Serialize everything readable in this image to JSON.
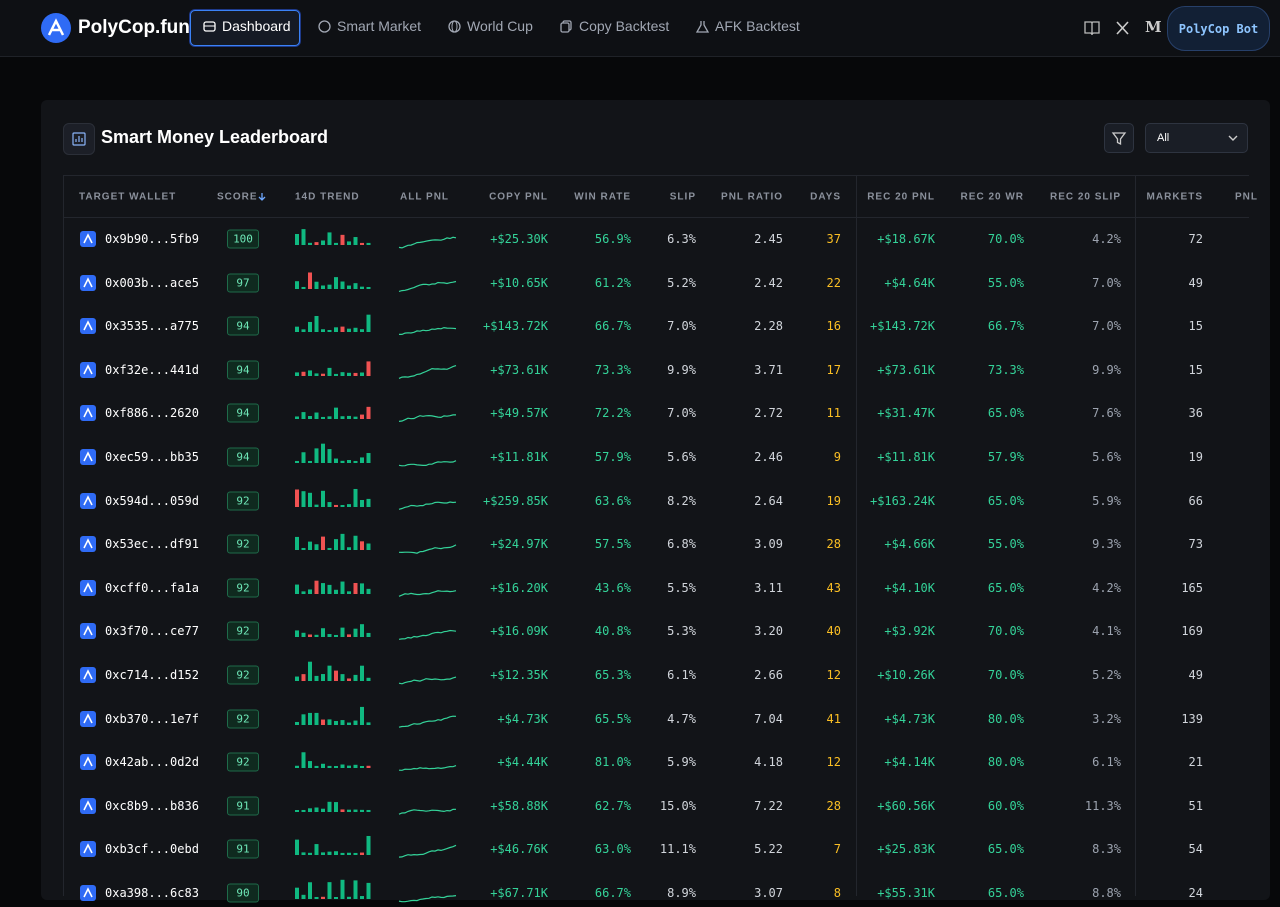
{
  "nav": {
    "brand": "PolyCop.fun",
    "items": [
      "Dashboard",
      "Smart Market",
      "World Cup",
      "Copy Backtest",
      "AFK Backtest"
    ],
    "button": "PolyCop Bot"
  },
  "panel": {
    "title": "Smart Money Leaderboard",
    "filter": "All"
  },
  "table": {
    "headers": [
      "TARGET WALLET",
      "SCORE",
      "14D TREND",
      "ALL PNL",
      "COPY PNL",
      "WIN RATE",
      "SLIP",
      "PNL RATIO",
      "DAYS",
      "REC 20 PNL",
      "REC 20 WR",
      "REC 20 SLIP",
      "MARKETS",
      "PNL"
    ],
    "rows": [
      [
        "0x9b90...5fb9",
        "100",
        "+$25.30K",
        "56.9%",
        "6.3%",
        "2.45",
        "37",
        "+$18.67K",
        "70.0%",
        "4.2%",
        "72"
      ],
      [
        "0x003b...ace5",
        "97",
        "+$10.65K",
        "61.2%",
        "5.2%",
        "2.42",
        "22",
        "+$4.64K",
        "55.0%",
        "7.0%",
        "49"
      ],
      [
        "0x3535...a775",
        "94",
        "+$143.72K",
        "66.7%",
        "7.0%",
        "2.28",
        "16",
        "+$143.72K",
        "66.7%",
        "7.0%",
        "15"
      ],
      [
        "0xf32e...441d",
        "94",
        "+$73.61K",
        "73.3%",
        "9.9%",
        "3.71",
        "17",
        "+$73.61K",
        "73.3%",
        "9.9%",
        "15"
      ],
      [
        "0xf886...2620",
        "94",
        "+$49.57K",
        "72.2%",
        "7.0%",
        "2.72",
        "11",
        "+$31.47K",
        "65.0%",
        "7.6%",
        "36"
      ],
      [
        "0xec59...bb35",
        "94",
        "+$11.81K",
        "57.9%",
        "5.6%",
        "2.46",
        "9",
        "+$11.81K",
        "57.9%",
        "5.6%",
        "19"
      ],
      [
        "0x594d...059d",
        "92",
        "+$259.85K",
        "63.6%",
        "8.2%",
        "2.64",
        "19",
        "+$163.24K",
        "65.0%",
        "5.9%",
        "66"
      ],
      [
        "0x53ec...df91",
        "92",
        "+$24.97K",
        "57.5%",
        "6.8%",
        "3.09",
        "28",
        "+$4.66K",
        "55.0%",
        "9.3%",
        "73"
      ],
      [
        "0xcff0...fa1a",
        "92",
        "+$16.20K",
        "43.6%",
        "5.5%",
        "3.11",
        "43",
        "+$4.10K",
        "65.0%",
        "4.2%",
        "165"
      ],
      [
        "0x3f70...ce77",
        "92",
        "+$16.09K",
        "40.8%",
        "5.3%",
        "3.20",
        "40",
        "+$3.92K",
        "70.0%",
        "4.1%",
        "169"
      ],
      [
        "0xc714...d152",
        "92",
        "+$12.35K",
        "65.3%",
        "6.1%",
        "2.66",
        "12",
        "+$10.26K",
        "70.0%",
        "5.2%",
        "49"
      ],
      [
        "0xb370...1e7f",
        "92",
        "+$4.73K",
        "65.5%",
        "4.7%",
        "7.04",
        "41",
        "+$4.73K",
        "80.0%",
        "3.2%",
        "139"
      ],
      [
        "0x42ab...0d2d",
        "92",
        "+$4.44K",
        "81.0%",
        "5.9%",
        "4.18",
        "12",
        "+$4.14K",
        "80.0%",
        "6.1%",
        "21"
      ],
      [
        "0xc8b9...b836",
        "91",
        "+$58.88K",
        "62.7%",
        "15.0%",
        "7.22",
        "28",
        "+$60.56K",
        "60.0%",
        "11.3%",
        "51"
      ],
      [
        "0xb3cf...0ebd",
        "91",
        "+$46.76K",
        "63.0%",
        "11.1%",
        "5.22",
        "7",
        "+$25.83K",
        "65.0%",
        "8.3%",
        "54"
      ],
      [
        "0xa398...6c83",
        "90",
        "+$67.71K",
        "66.7%",
        "8.9%",
        "3.07",
        "8",
        "+$55.31K",
        "65.0%",
        "8.8%",
        "24"
      ]
    ]
  }
}
